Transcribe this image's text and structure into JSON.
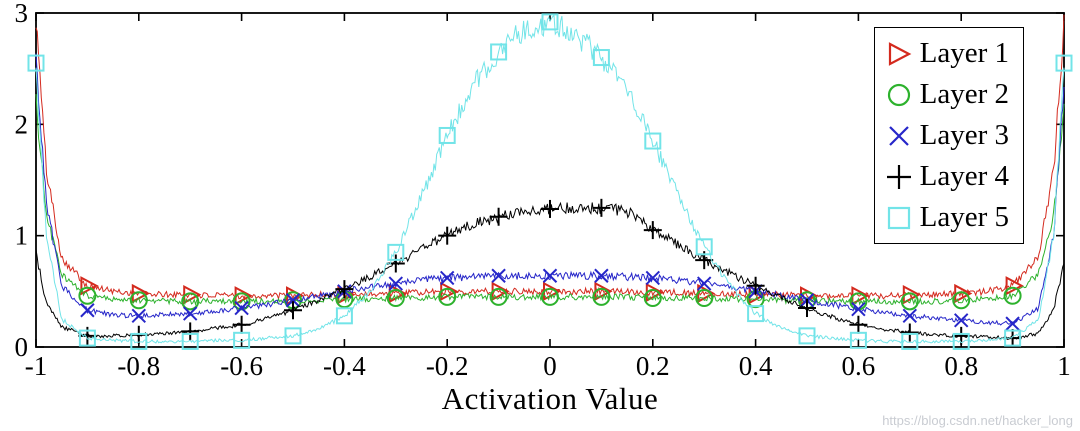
{
  "watermark": {
    "text": "https://blog.csdn.net/hacker_long"
  },
  "chart_data": {
    "type": "line",
    "title": "",
    "xlabel": "Activation Value",
    "ylabel": "",
    "xlim": [
      -1,
      1
    ],
    "ylim": [
      0,
      3
    ],
    "grid": false,
    "legend_position": "top-right",
    "x_ticks": [
      -1,
      -0.8,
      -0.6,
      -0.4,
      -0.2,
      0,
      0.2,
      0.4,
      0.6,
      0.8,
      1
    ],
    "x_tick_labels": [
      "-1",
      "-0.8",
      "-0.6",
      "-0.4",
      "-0.2",
      "0",
      "0.2",
      "0.4",
      "0.6",
      "0.8",
      "1"
    ],
    "y_ticks": [
      0,
      1,
      2,
      3
    ],
    "y_tick_labels": [
      "0",
      "1",
      "2",
      "3"
    ],
    "x": [
      -1,
      -0.98,
      -0.95,
      -0.9,
      -0.85,
      -0.8,
      -0.75,
      -0.7,
      -0.65,
      -0.6,
      -0.55,
      -0.5,
      -0.45,
      -0.4,
      -0.35,
      -0.3,
      -0.25,
      -0.2,
      -0.15,
      -0.1,
      -0.05,
      0,
      0.05,
      0.1,
      0.15,
      0.2,
      0.25,
      0.3,
      0.35,
      0.4,
      0.45,
      0.5,
      0.55,
      0.6,
      0.65,
      0.7,
      0.75,
      0.8,
      0.85,
      0.9,
      0.95,
      0.98,
      1
    ],
    "series": [
      {
        "name": "Layer 1",
        "color": "#d42a1e",
        "marker": "triangle-right",
        "marker_x": [
          -0.9,
          -0.8,
          -0.7,
          -0.6,
          -0.5,
          -0.4,
          -0.3,
          -0.2,
          -0.1,
          0,
          0.1,
          0.2,
          0.3,
          0.4,
          0.5,
          0.6,
          0.7,
          0.8,
          0.9
        ],
        "y": [
          2.95,
          1.6,
          0.8,
          0.55,
          0.5,
          0.48,
          0.47,
          0.47,
          0.46,
          0.46,
          0.46,
          0.46,
          0.47,
          0.47,
          0.48,
          0.48,
          0.49,
          0.5,
          0.5,
          0.5,
          0.5,
          0.5,
          0.5,
          0.5,
          0.5,
          0.49,
          0.49,
          0.48,
          0.48,
          0.47,
          0.47,
          0.46,
          0.46,
          0.46,
          0.46,
          0.47,
          0.47,
          0.48,
          0.5,
          0.55,
          0.8,
          1.6,
          2.9
        ]
      },
      {
        "name": "Layer 2",
        "color": "#2db22d",
        "marker": "circle",
        "marker_x": [
          -0.9,
          -0.8,
          -0.7,
          -0.6,
          -0.5,
          -0.4,
          -0.3,
          -0.2,
          -0.1,
          0,
          0.1,
          0.2,
          0.3,
          0.4,
          0.5,
          0.6,
          0.7,
          0.8,
          0.9
        ],
        "y": [
          2.2,
          1.2,
          0.65,
          0.46,
          0.43,
          0.42,
          0.41,
          0.41,
          0.41,
          0.41,
          0.41,
          0.42,
          0.42,
          0.43,
          0.43,
          0.44,
          0.44,
          0.45,
          0.45,
          0.45,
          0.45,
          0.45,
          0.45,
          0.45,
          0.45,
          0.44,
          0.44,
          0.44,
          0.43,
          0.43,
          0.42,
          0.42,
          0.41,
          0.41,
          0.41,
          0.41,
          0.41,
          0.42,
          0.43,
          0.46,
          0.65,
          1.2,
          2.15
        ]
      },
      {
        "name": "Layer 3",
        "color": "#2626c9",
        "marker": "x",
        "marker_x": [
          -0.9,
          -0.8,
          -0.7,
          -0.6,
          -0.5,
          -0.4,
          -0.3,
          -0.2,
          -0.1,
          0,
          0.1,
          0.2,
          0.3,
          0.4,
          0.5,
          0.6,
          0.7,
          0.8,
          0.9
        ],
        "y": [
          2.6,
          1.3,
          0.55,
          0.33,
          0.29,
          0.28,
          0.29,
          0.3,
          0.32,
          0.35,
          0.38,
          0.42,
          0.46,
          0.5,
          0.54,
          0.57,
          0.6,
          0.62,
          0.63,
          0.64,
          0.64,
          0.64,
          0.64,
          0.64,
          0.63,
          0.62,
          0.6,
          0.57,
          0.54,
          0.5,
          0.46,
          0.42,
          0.38,
          0.34,
          0.31,
          0.28,
          0.26,
          0.24,
          0.22,
          0.21,
          0.35,
          1.0,
          2.4
        ]
      },
      {
        "name": "Layer 4",
        "color": "#000000",
        "marker": "plus",
        "marker_x": [
          -0.9,
          -0.8,
          -0.7,
          -0.6,
          -0.5,
          -0.4,
          -0.3,
          -0.2,
          -0.1,
          0,
          0.1,
          0.2,
          0.3,
          0.4,
          0.5,
          0.6,
          0.7,
          0.8,
          0.9
        ],
        "y": [
          0.85,
          0.4,
          0.18,
          0.1,
          0.1,
          0.11,
          0.12,
          0.14,
          0.17,
          0.2,
          0.26,
          0.33,
          0.42,
          0.52,
          0.63,
          0.75,
          0.88,
          1.0,
          1.1,
          1.17,
          1.22,
          1.24,
          1.25,
          1.25,
          1.22,
          1.05,
          0.92,
          0.78,
          0.66,
          0.55,
          0.44,
          0.35,
          0.27,
          0.2,
          0.16,
          0.13,
          0.11,
          0.1,
          0.09,
          0.08,
          0.12,
          0.35,
          0.75
        ]
      },
      {
        "name": "Layer 5",
        "color": "#72e4e8",
        "marker": "square",
        "marker_x": [
          -1,
          -0.9,
          -0.8,
          -0.7,
          -0.6,
          -0.5,
          -0.4,
          -0.3,
          -0.2,
          -0.1,
          0,
          0.1,
          0.2,
          0.3,
          0.4,
          0.5,
          0.6,
          0.7,
          0.8,
          0.9,
          1
        ],
        "y": [
          2.55,
          1.0,
          0.25,
          0.08,
          0.06,
          0.05,
          0.05,
          0.05,
          0.06,
          0.06,
          0.08,
          0.1,
          0.16,
          0.28,
          0.5,
          0.85,
          1.35,
          1.9,
          2.35,
          2.65,
          2.85,
          2.92,
          2.8,
          2.6,
          2.3,
          1.85,
          1.35,
          0.9,
          0.55,
          0.3,
          0.17,
          0.1,
          0.08,
          0.06,
          0.05,
          0.05,
          0.05,
          0.05,
          0.06,
          0.08,
          0.25,
          1.0,
          2.55
        ]
      }
    ]
  }
}
